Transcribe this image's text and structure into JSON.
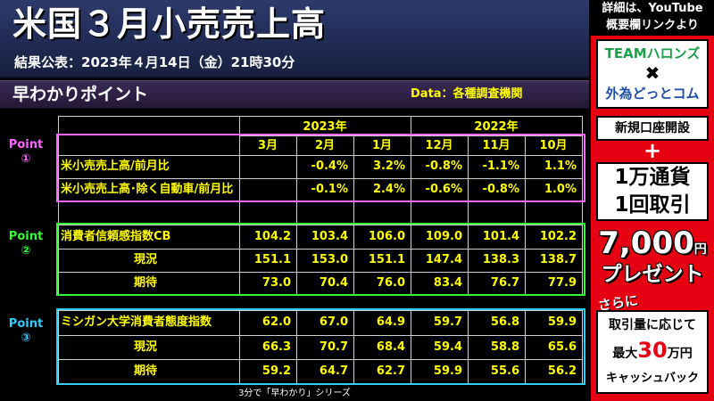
{
  "header": {
    "title": "米国３月小売売上高",
    "subtitle": "結果公表：2023年４月14日（金）21時30分"
  },
  "section": {
    "title": "早わかりポイント",
    "data_source": "Data：各種調査機関"
  },
  "table": {
    "years": [
      "2023年",
      "2022年"
    ],
    "months": [
      "3月",
      "2月",
      "1月",
      "12月",
      "11月",
      "10月"
    ],
    "rows": [
      {
        "label": "米小売売上高/前月比",
        "values": [
          "",
          "-0.4%",
          "3.2%",
          "-0.8%",
          "-1.1%",
          "1.1%"
        ]
      },
      {
        "label": "米小売売上高･除く自動車/前月比",
        "values": [
          "",
          "-0.1%",
          "2.4%",
          "-0.6%",
          "-0.8%",
          "1.0%"
        ]
      },
      {
        "label": "消費者信頼感指数CB",
        "values": [
          "104.2",
          "103.4",
          "106.0",
          "109.0",
          "101.4",
          "102.2"
        ]
      },
      {
        "label": "現況",
        "values": [
          "151.1",
          "153.0",
          "151.1",
          "147.4",
          "138.3",
          "138.7"
        ]
      },
      {
        "label": "期待",
        "values": [
          "73.0",
          "70.4",
          "76.0",
          "83.4",
          "76.7",
          "77.9"
        ]
      },
      {
        "label": "ミシガン大学消費者態度指数",
        "values": [
          "62.0",
          "67.0",
          "64.9",
          "59.7",
          "56.8",
          "59.9"
        ]
      },
      {
        "label": "現況",
        "values": [
          "66.3",
          "70.7",
          "68.4",
          "59.4",
          "58.8",
          "65.6"
        ]
      },
      {
        "label": "期待",
        "values": [
          "59.2",
          "64.7",
          "62.7",
          "59.9",
          "55.6",
          "56.2"
        ]
      }
    ]
  },
  "points": [
    {
      "label": "Point",
      "num": "①",
      "color": "#ff66ff"
    },
    {
      "label": "Point",
      "num": "②",
      "color": "#33ff33"
    },
    {
      "label": "Point",
      "num": "③",
      "color": "#33ccff"
    }
  ],
  "footer": "3分で「早わかり」シリーズ",
  "promo": {
    "top_line1": "詳細は、YouTube",
    "top_line2": "概要欄リンクより",
    "brand_line1": "TEAMハロンズ",
    "brand_x": "✖",
    "brand_line2": "外為どっとコム",
    "new_account": "新規口座開設",
    "plus": "+",
    "cond_line1": "1万通貨",
    "cond_line2": "1回取引",
    "amount": "7,000",
    "yen_small": "円",
    "present": "プレゼント",
    "sarani": "さらに",
    "cb_line1": "取引量に応じて",
    "cb_prefix": "最大",
    "cb_amount": "30",
    "cb_unit": "万円",
    "cb_line3": "キャッシュバック"
  }
}
